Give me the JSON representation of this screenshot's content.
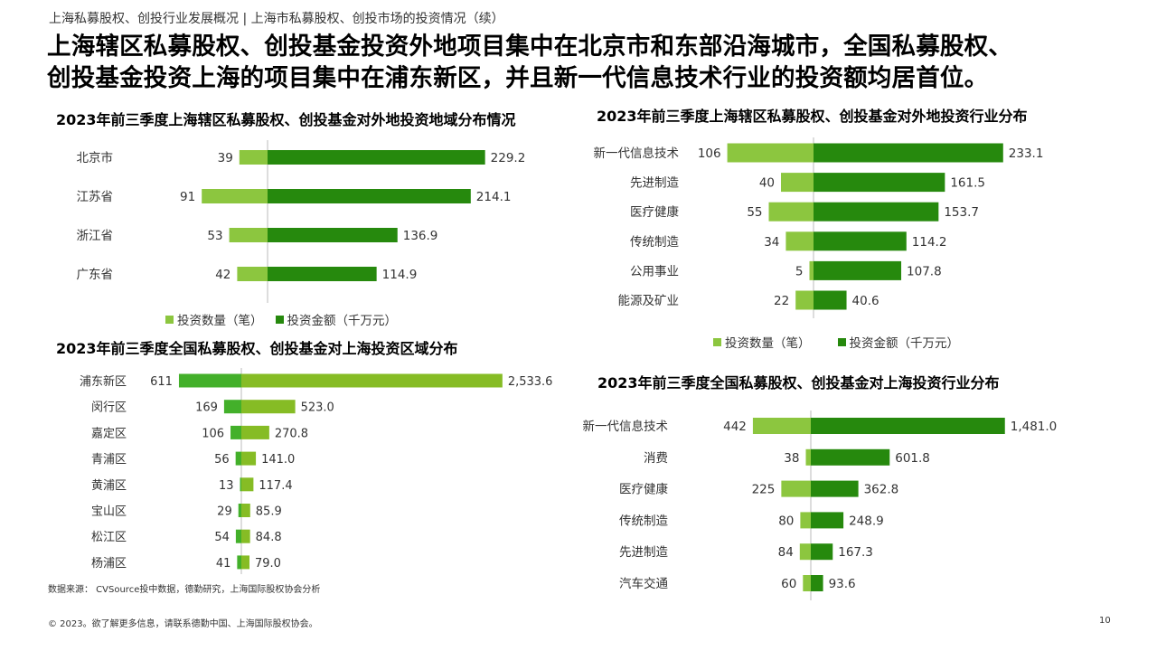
{
  "breadcrumb": "上海私募股权、创投行业发展概况 | 上海市私募股权、创投市场的投资情况（续）",
  "headline": {
    "line1": "上海辖区私募股权、创投基金投资外地项目集中在北京市和东部沿海城市，全国私募股权、",
    "line2": "创投基金投资上海的项目集中在浦东新区，并且新一代信息技术行业的投资额均居首位。"
  },
  "colors": {
    "count_bar": "#8cc63f",
    "amount_bar": "#26890d",
    "amount_bar_alt": "#86bc25",
    "count_bar_alt": "#43b02a",
    "axis": "#bbbbbb",
    "label": "#333333"
  },
  "legend": {
    "count": "投资数量（笔）",
    "amount": "投资金额（千万元）"
  },
  "chart_data": [
    {
      "id": "c1",
      "type": "bar",
      "title": "2023年前三季度上海辖区私募股权、创投基金对外地投资地域分布情况",
      "categories": [
        "北京市",
        "江苏省",
        "浙江省",
        "广东省"
      ],
      "series": [
        {
          "name": "投资数量（笔）",
          "values": [
            39,
            91,
            53,
            42
          ]
        },
        {
          "name": "投资金额（千万元）",
          "values": [
            229.2,
            214.1,
            136.9,
            114.9
          ]
        }
      ]
    },
    {
      "id": "c2",
      "type": "bar",
      "title": "2023年前三季度上海辖区私募股权、创投基金对外地投资行业分布",
      "categories": [
        "新一代信息技术",
        "先进制造",
        "医疗健康",
        "传统制造",
        "公用事业",
        "能源及矿业"
      ],
      "series": [
        {
          "name": "投资数量（笔）",
          "values": [
            106,
            40,
            55,
            34,
            5,
            22
          ]
        },
        {
          "name": "投资金额（千万元）",
          "values": [
            233.1,
            161.5,
            153.7,
            114.2,
            107.8,
            40.6
          ]
        }
      ]
    },
    {
      "id": "c3",
      "type": "bar",
      "title": "2023年前三季度全国私募股权、创投基金对上海投资区域分布",
      "categories": [
        "浦东新区",
        "闵行区",
        "嘉定区",
        "青浦区",
        "黄浦区",
        "宝山区",
        "松江区",
        "杨浦区"
      ],
      "series": [
        {
          "values": [
            611,
            169,
            106,
            56,
            13,
            29,
            54,
            41
          ]
        },
        {
          "values": [
            2533.6,
            523.0,
            270.8,
            141.0,
            117.4,
            85.9,
            84.8,
            79.0
          ]
        }
      ],
      "value_labels": [
        [
          "611",
          "169",
          "106",
          "56",
          "13",
          "29",
          "54",
          "41"
        ],
        [
          "2,533.6",
          "523.0",
          "270.8",
          "141.0",
          "117.4",
          "85.9",
          "84.8",
          "79.0"
        ]
      ]
    },
    {
      "id": "c4",
      "type": "bar",
      "title": "2023年前三季度全国私募股权、创投基金对上海投资行业分布",
      "categories": [
        "新一代信息技术",
        "消费",
        "医疗健康",
        "传统制造",
        "先进制造",
        "汽车交通"
      ],
      "series": [
        {
          "values": [
            442,
            38,
            225,
            80,
            84,
            60
          ]
        },
        {
          "values": [
            1481.0,
            601.8,
            362.8,
            248.9,
            167.3,
            93.6
          ]
        }
      ],
      "value_labels": [
        [
          "442",
          "38",
          "225",
          "80",
          "84",
          "60"
        ],
        [
          "1,481.0",
          "601.8",
          "362.8",
          "248.9",
          "167.3",
          "93.6"
        ]
      ]
    }
  ],
  "source": "数据来源： CVSource投中数据，德勤研究，上海国际股权协会分析",
  "copyright": "© 2023。欲了解更多信息，请联系德勤中国、上海国际股权协会。",
  "page_number": "10"
}
